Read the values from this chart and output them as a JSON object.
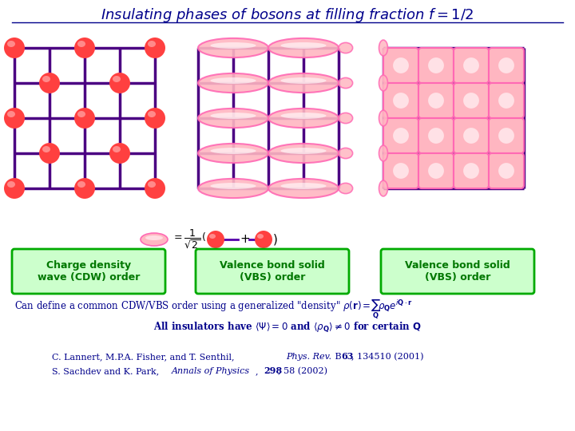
{
  "bg_color": "#ffffff",
  "grid_color": "#4B0082",
  "grid_linewidth": 2.5,
  "dot_color": "#FF4040",
  "dot_edge_color": "#CC0000",
  "pink_dark": "#FF69B4",
  "pink_light": "#FFB6C1",
  "pink_mid": "#FF85C0",
  "box_edge_color": "#00AA00",
  "box_fill_color": "#CCFFCC",
  "box_text_color": "#007700",
  "dark_blue": "#00008B",
  "purple": "#5500AA",
  "label1": "Charge density\nwave (CDW) order",
  "label2": "Valence bond solid\n(VBS) order",
  "label3": "Valence bond solid\n(VBS) order"
}
